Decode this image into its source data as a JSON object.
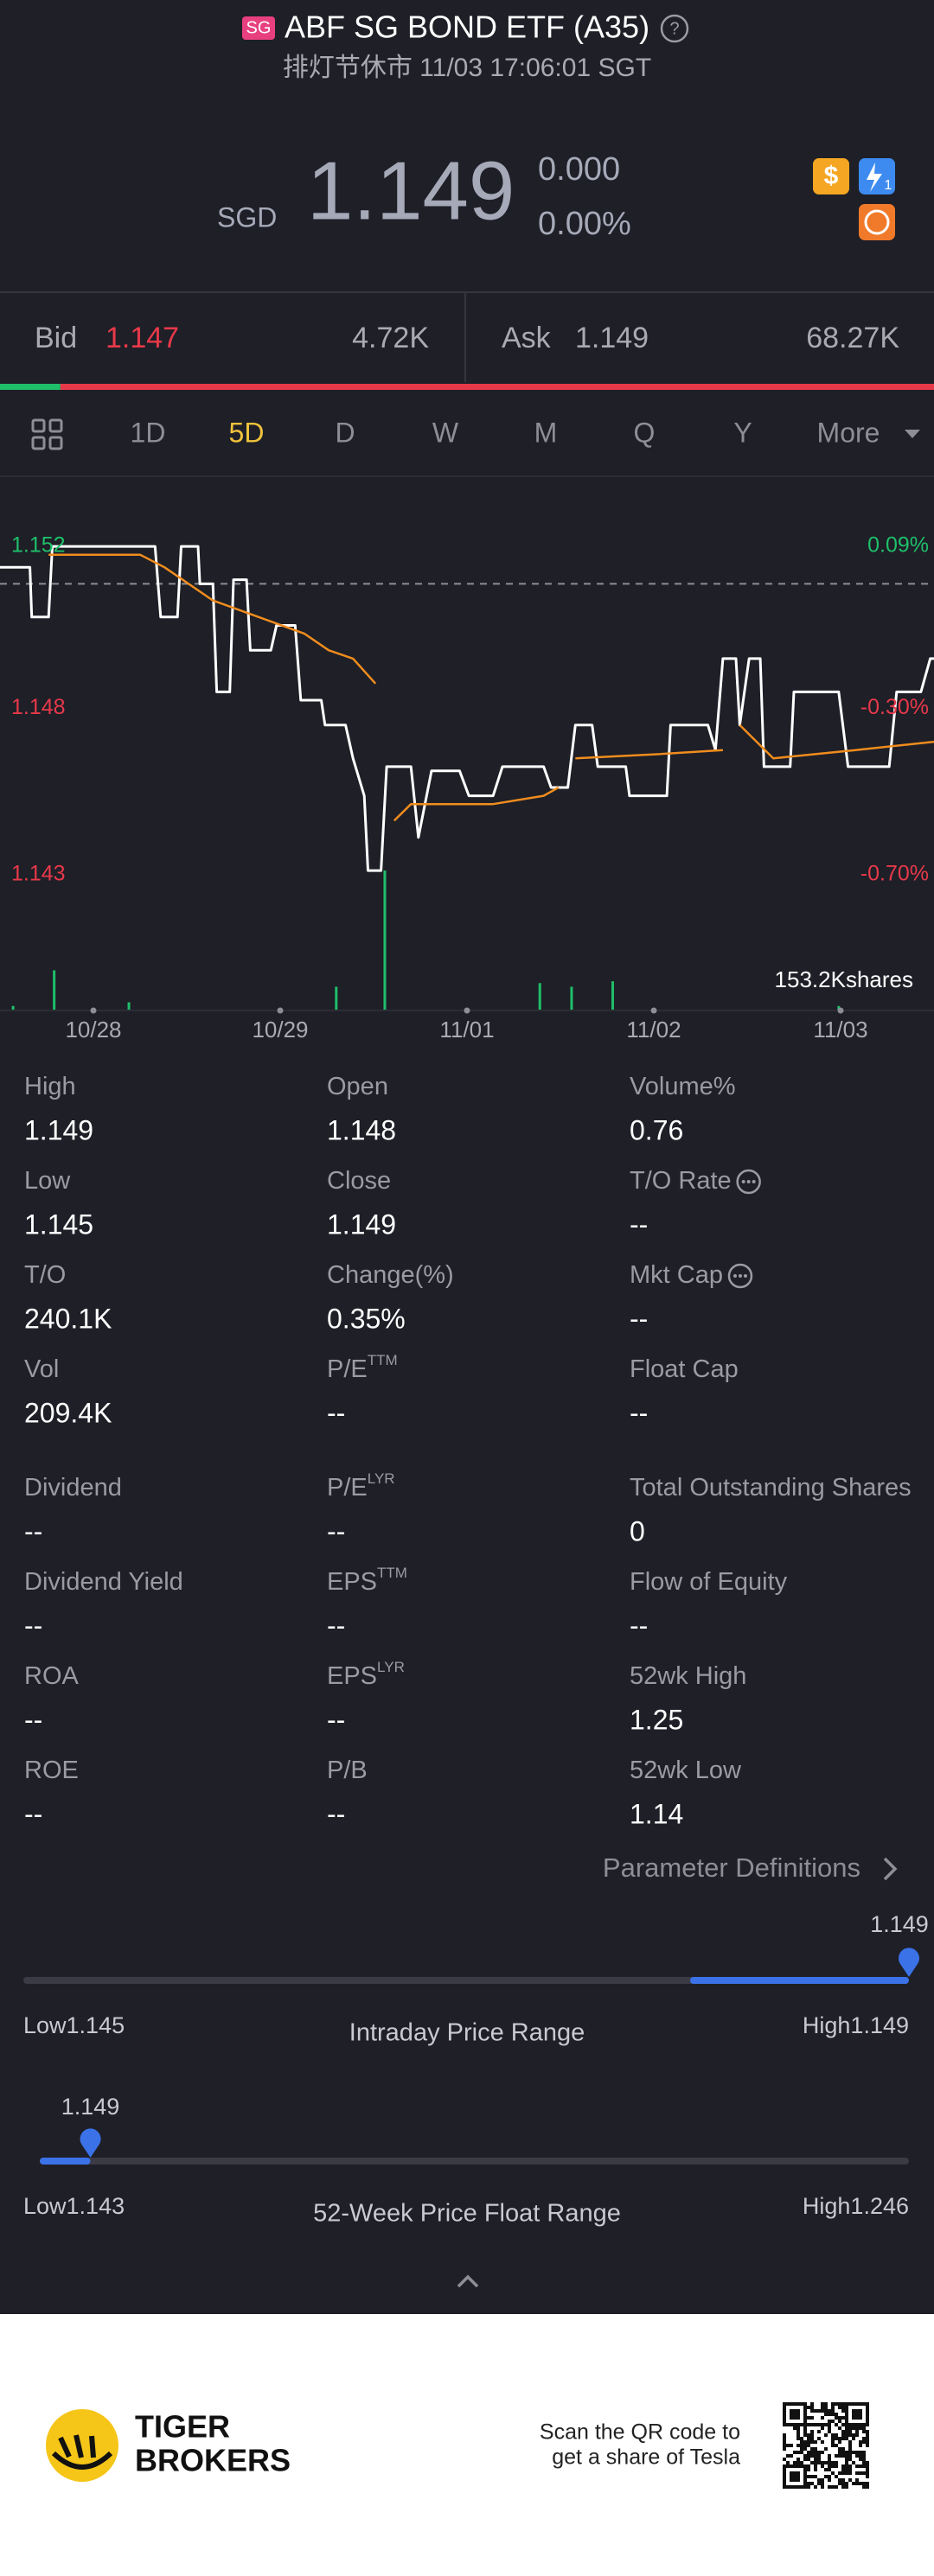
{
  "header": {
    "badge": "SG",
    "title": "ABF SG BOND ETF (A35)",
    "status": "排灯节休市 11/03 17:06:01 SGT"
  },
  "quote": {
    "currency": "SGD",
    "price": "1.149",
    "change": "0.000",
    "change_pct": "0.00%",
    "icon_dollar": "$",
    "icon_flash": "1"
  },
  "bidask": {
    "bid_label": "Bid",
    "bid": "1.147",
    "bid_size": {
      "value": 4720,
      "label": "4.72K"
    },
    "ask_label": "Ask",
    "ask": "1.149",
    "ask_size": {
      "value": 68270,
      "label": "68.27K"
    }
  },
  "tabs": {
    "items": [
      "1D",
      "5D",
      "D",
      "W",
      "M",
      "Q",
      "Y",
      "More"
    ],
    "active": 1
  },
  "chart_data": {
    "type": "line",
    "xlim": [
      -0.5,
      4.5
    ],
    "xticks": [
      {
        "value": 0,
        "label": "10/28"
      },
      {
        "value": 1,
        "label": "10/29"
      },
      {
        "value": 2,
        "label": "11/01"
      },
      {
        "value": 3,
        "label": "11/02"
      },
      {
        "value": 4,
        "label": "11/03"
      }
    ],
    "ylim": [
      -0.8,
      0.24
    ],
    "yticks": [
      {
        "value": 0.09,
        "label": "0.09%"
      },
      {
        "value": -0.3,
        "label": "-0.30%"
      },
      {
        "value": -0.7,
        "label": "-0.70%"
      }
    ],
    "y_left_labels": [
      "1.152",
      "1.148",
      "1.143"
    ],
    "ref_line": 0,
    "series": [
      {
        "color": "#ffffff",
        "x": [
          -0.5,
          -0.34,
          -0.33,
          -0.24,
          -0.22,
          0.33,
          0.36,
          0.45,
          0.47,
          0.56,
          0.57,
          0.64,
          0.66,
          0.73,
          0.75,
          0.82,
          0.84,
          0.95,
          0.98,
          1.08,
          1.11,
          1.22,
          1.24,
          1.35,
          1.39,
          1.45,
          1.47,
          1.54,
          1.57,
          1.7,
          1.74,
          1.81,
          1.96,
          2.01,
          2.14,
          2.19,
          2.41,
          2.45,
          2.54,
          2.58,
          2.67,
          2.7,
          2.85,
          2.87,
          3.07,
          3.09,
          3.29,
          3.33,
          3.37,
          3.44,
          3.46,
          3.51,
          3.57,
          3.59,
          3.73,
          3.75,
          3.99,
          4.04,
          4.26,
          4.3,
          4.43,
          4.48,
          4.5
        ],
        "values": [
          0.04,
          0.04,
          -0.08,
          -0.08,
          0.09,
          0.09,
          -0.08,
          -0.08,
          0.09,
          0.09,
          0,
          0,
          -0.26,
          -0.26,
          0.01,
          0.01,
          -0.16,
          -0.16,
          -0.1,
          -0.1,
          -0.28,
          -0.28,
          -0.34,
          -0.34,
          -0.42,
          -0.51,
          -0.69,
          -0.69,
          -0.44,
          -0.44,
          -0.61,
          -0.45,
          -0.45,
          -0.51,
          -0.51,
          -0.44,
          -0.44,
          -0.49,
          -0.49,
          -0.34,
          -0.34,
          -0.44,
          -0.44,
          -0.51,
          -0.51,
          -0.34,
          -0.34,
          -0.4,
          -0.18,
          -0.18,
          -0.34,
          -0.18,
          -0.18,
          -0.44,
          -0.44,
          -0.26,
          -0.26,
          -0.44,
          -0.44,
          -0.26,
          -0.26,
          -0.18,
          -0.18
        ]
      },
      {
        "color": "#f08c1e",
        "x": [
          -0.24,
          0.25,
          0.38,
          0.64,
          1.13,
          1.26,
          1.39,
          1.51,
          1.56,
          1.61,
          1.7,
          2.14,
          2.41,
          2.49,
          2.54,
          2.58,
          3.02,
          3.37,
          3.42,
          3.46,
          3.64,
          4.08,
          4.5
        ],
        "values": [
          0.07,
          0.07,
          0.04,
          -0.04,
          -0.12,
          -0.16,
          -0.18,
          -0.24,
          null,
          -0.57,
          -0.53,
          -0.53,
          -0.51,
          -0.49,
          null,
          -0.42,
          -0.41,
          -0.4,
          null,
          -0.34,
          -0.42,
          -0.4,
          -0.38
        ]
      }
    ],
    "volume": {
      "color": "#1fbf6a",
      "x": [
        -0.43,
        -0.21,
        0.19,
        1.3,
        1.56,
        2.39,
        2.56,
        2.78,
        3.99
      ],
      "values": [
        5,
        44,
        9,
        26,
        153.2,
        30,
        26,
        32,
        5
      ],
      "ylim": [
        0,
        153.2
      ],
      "label": "153.2Kshares"
    }
  },
  "stats": {
    "rows": [
      [
        {
          "label": "High",
          "value": "1.149"
        },
        {
          "label": "Open",
          "value": "1.148"
        },
        {
          "label": "Volume%",
          "value": "0.76"
        }
      ],
      [
        {
          "label": "Low",
          "value": "1.145"
        },
        {
          "label": "Close",
          "value": "1.149"
        },
        {
          "label": "T/O Rate",
          "info": true,
          "value": "--"
        }
      ],
      [
        {
          "label": "T/O",
          "value": "240.1K"
        },
        {
          "label": "Change(%)",
          "value": "0.35%"
        },
        {
          "label": "Mkt Cap",
          "info": true,
          "value": "--"
        }
      ],
      [
        {
          "label": "Vol",
          "value": "209.4K"
        },
        {
          "label": "P/E",
          "sup": "TTM",
          "value": "--"
        },
        {
          "label": "Float Cap",
          "value": "--"
        }
      ],
      [
        {
          "label": "Dividend",
          "value": "--"
        },
        {
          "label": "P/E",
          "sup": "LYR",
          "value": "--"
        },
        {
          "label": "Total Outstanding Shares",
          "value": "0"
        }
      ],
      [
        {
          "label": "Dividend Yield",
          "value": "--"
        },
        {
          "label": "EPS",
          "sup": "TTM",
          "value": "--"
        },
        {
          "label": "Flow of Equity",
          "value": "--"
        }
      ],
      [
        {
          "label": "ROA",
          "value": "--"
        },
        {
          "label": "EPS",
          "sup": "LYR",
          "value": "--"
        },
        {
          "label": "52wk High",
          "value": "1.25"
        }
      ],
      [
        {
          "label": "ROE",
          "value": "--"
        },
        {
          "label": "P/B",
          "value": "--"
        },
        {
          "label": "52wk Low",
          "value": "1.14"
        }
      ]
    ]
  },
  "param_link": "Parameter Definitions",
  "ranges": [
    {
      "title": "Intraday Price Range",
      "low_label": "Low",
      "high_label": "High",
      "low": 1.145,
      "high": 1.149,
      "current": 1.149
    },
    {
      "title": "52-Week Price Float Range",
      "low_label": "Low",
      "high_label": "High",
      "low": 1.143,
      "high": 1.246,
      "current": 1.149
    }
  ],
  "footer": {
    "brand": [
      "TIGER",
      "BROKERS"
    ],
    "qr_text": [
      "Scan the QR code to",
      "get a share of Tesla"
    ]
  }
}
